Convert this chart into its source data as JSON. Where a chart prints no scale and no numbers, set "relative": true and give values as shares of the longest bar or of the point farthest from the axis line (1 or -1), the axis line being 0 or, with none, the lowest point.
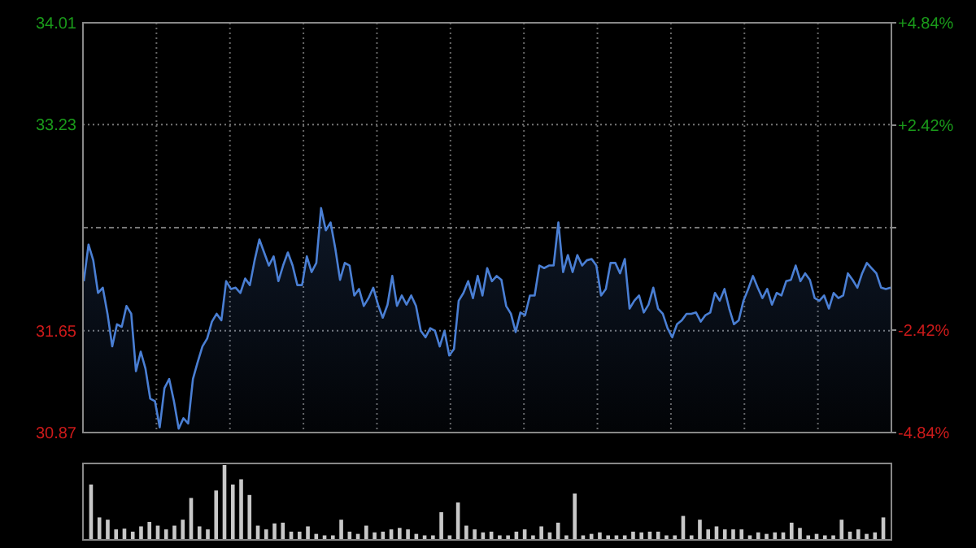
{
  "chart_data": [
    {
      "type": "area",
      "categories": [
        null,
        null,
        null,
        null,
        null,
        null,
        null,
        null,
        null,
        null,
        null,
        null,
        null,
        null,
        null,
        null,
        null,
        null,
        null,
        null,
        null,
        null,
        null,
        null,
        null,
        null,
        null,
        null,
        null,
        null,
        null,
        null,
        null,
        null,
        null,
        null,
        null,
        null,
        null,
        null,
        null,
        null,
        null,
        null,
        null,
        null,
        null,
        null,
        null,
        null,
        null,
        null,
        null,
        null,
        null,
        null,
        null,
        null,
        null,
        null,
        null,
        null,
        null,
        null,
        null,
        null,
        null,
        null,
        null,
        null,
        null,
        null,
        null,
        null,
        null,
        null,
        null,
        null,
        null,
        null,
        null,
        null,
        null,
        null,
        null,
        null,
        null,
        null,
        null,
        null,
        null,
        null,
        null,
        null,
        null,
        null,
        null,
        null,
        null,
        null,
        null,
        null,
        null,
        null,
        null,
        null,
        null,
        null,
        null,
        null,
        null,
        null,
        null,
        null,
        null,
        null,
        null,
        null,
        null,
        null,
        null,
        null,
        null,
        null,
        null,
        null,
        null,
        null,
        null,
        null,
        null,
        null,
        null,
        null,
        null,
        null,
        null,
        null,
        null,
        null,
        null,
        null,
        null,
        null,
        null,
        null,
        null,
        null,
        null,
        null,
        null,
        null,
        null,
        null,
        null,
        null,
        null,
        null,
        null,
        null,
        null,
        null,
        null,
        null,
        null,
        null,
        null,
        null,
        null,
        null,
        null
      ],
      "ylim": [
        30.87,
        34.01
      ],
      "yticks": [
        30.87,
        31.65,
        {
          "value": 32.44,
          "label": null
        },
        33.23,
        34.01
      ],
      "y2lim": [
        -4.84,
        4.84
      ],
      "y2ticks": [
        {
          "value": -4.84,
          "label": "-4.84%"
        },
        {
          "value": -2.42,
          "label": "-2.42%"
        },
        {
          "value": 0,
          "label": null
        },
        {
          "value": 2.42,
          "label": "+2.42%"
        },
        {
          "value": 4.84,
          "label": "+4.84%"
        }
      ],
      "grid": true,
      "series": [
        {
          "color": "#4a7fd4",
          "values": [
            32.03,
            32.31,
            32.19,
            31.94,
            31.98,
            31.78,
            31.53,
            31.7,
            31.68,
            31.84,
            31.78,
            31.34,
            31.49,
            31.36,
            31.13,
            31.11,
            30.91,
            31.21,
            31.28,
            31.11,
            30.9,
            30.98,
            30.94,
            31.28,
            31.41,
            31.53,
            31.59,
            31.72,
            31.78,
            31.73,
            32.03,
            31.97,
            31.98,
            31.94,
            32.05,
            32.0,
            32.19,
            32.35,
            32.25,
            32.15,
            32.22,
            32.03,
            32.15,
            32.25,
            32.15,
            32.0,
            32.0,
            32.22,
            32.1,
            32.17,
            32.59,
            32.42,
            32.48,
            32.28,
            32.04,
            32.17,
            32.15,
            31.92,
            31.97,
            31.84,
            31.9,
            31.98,
            31.85,
            31.75,
            31.85,
            32.07,
            31.84,
            31.92,
            31.85,
            31.92,
            31.84,
            31.65,
            31.6,
            31.67,
            31.65,
            31.53,
            31.65,
            31.46,
            31.51,
            31.88,
            31.94,
            32.03,
            31.9,
            32.07,
            31.92,
            32.13,
            32.03,
            32.07,
            32.04,
            31.84,
            31.78,
            31.64,
            31.79,
            31.77,
            31.92,
            31.92,
            32.15,
            32.13,
            32.15,
            32.15,
            32.48,
            32.1,
            32.23,
            32.1,
            32.23,
            32.15,
            32.19,
            32.2,
            32.15,
            31.92,
            31.97,
            32.17,
            32.17,
            32.09,
            32.2,
            31.82,
            31.88,
            31.92,
            31.79,
            31.85,
            31.98,
            31.82,
            31.78,
            31.67,
            31.6,
            31.7,
            31.73,
            31.78,
            31.78,
            31.79,
            31.72,
            31.77,
            31.79,
            31.94,
            31.88,
            31.97,
            31.82,
            31.7,
            31.73,
            31.88,
            31.97,
            32.07,
            31.98,
            31.9,
            31.97,
            31.85,
            31.94,
            31.92,
            32.03,
            32.04,
            32.15,
            32.03,
            32.09,
            32.04,
            31.9,
            31.88,
            31.92,
            31.82,
            31.94,
            31.9,
            31.92,
            32.09,
            32.04,
            31.98,
            32.09,
            32.17,
            32.13,
            32.09,
            31.98,
            31.97,
            31.98
          ]
        }
      ]
    },
    {
      "type": "bar",
      "relative": true,
      "categories": [
        null,
        null,
        null,
        null,
        null,
        null,
        null,
        null,
        null,
        null,
        null,
        null,
        null,
        null,
        null,
        null,
        null,
        null,
        null,
        null,
        null,
        null,
        null,
        null,
        null,
        null,
        null,
        null,
        null,
        null,
        null,
        null,
        null,
        null,
        null,
        null,
        null,
        null,
        null,
        null,
        null,
        null,
        null,
        null,
        null,
        null,
        null,
        null,
        null,
        null,
        null,
        null,
        null,
        null,
        null,
        null,
        null,
        null,
        null,
        null,
        null,
        null,
        null,
        null,
        null,
        null,
        null,
        null,
        null,
        null,
        null,
        null,
        null,
        null,
        null,
        null,
        null,
        null,
        null,
        null,
        null,
        null,
        null,
        null,
        null,
        null,
        null,
        null,
        null,
        null,
        null,
        null,
        null,
        null,
        null,
        null
      ],
      "series": [
        {
          "color": "#c8c8c8",
          "values": [
            0.74,
            0.3,
            0.27,
            0.14,
            0.15,
            0.11,
            0.18,
            0.24,
            0.19,
            0.14,
            0.19,
            0.27,
            0.56,
            0.18,
            0.14,
            0.66,
            1,
            0.74,
            0.81,
            0.6,
            0.19,
            0.14,
            0.22,
            0.23,
            0.11,
            0.11,
            0.18,
            0.08,
            0.06,
            0.06,
            0.27,
            0.11,
            0.08,
            0.19,
            0.1,
            0.11,
            0.14,
            0.16,
            0.14,
            0.08,
            0.06,
            0.06,
            0.37,
            0.06,
            0.5,
            0.19,
            0.14,
            0.1,
            0.11,
            0.06,
            0.06,
            0.11,
            0.14,
            0.06,
            0.18,
            0.1,
            0.23,
            0.06,
            0.62,
            0.06,
            0.08,
            0.1,
            0.06,
            0.06,
            0.06,
            0.11,
            0.1,
            0.11,
            0.11,
            0.06,
            0.06,
            0.32,
            0.06,
            0.27,
            0.14,
            0.18,
            0.14,
            0.14,
            0.14,
            0.06,
            0.1,
            0.08,
            0.1,
            0.1,
            0.23,
            0.16,
            0.06,
            0.08,
            0.06,
            0.06,
            0.27,
            0.11,
            0.14,
            0.08,
            0.1,
            0.3
          ]
        }
      ]
    }
  ]
}
